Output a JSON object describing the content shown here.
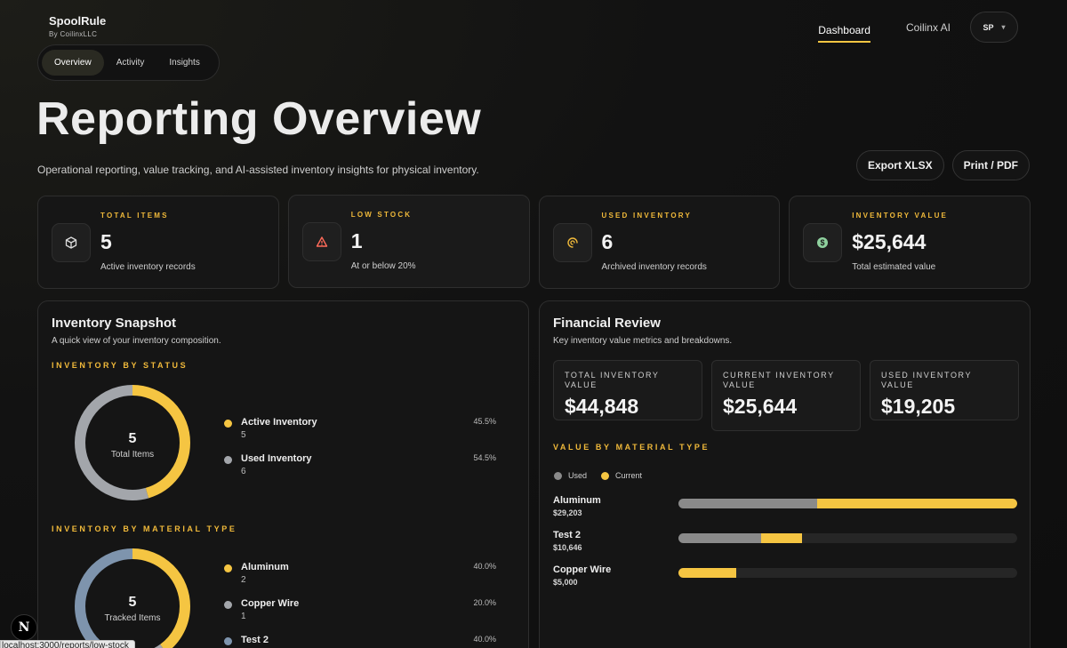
{
  "brand": {
    "name": "SpoolRule",
    "sub": "By CoilinxLLC"
  },
  "nav": {
    "links": [
      "Dashboard",
      "Coilinx AI"
    ],
    "user_initials": "SP",
    "user_menu_icon": "chevron-down-icon"
  },
  "tabs": [
    "Overview",
    "Activity",
    "Insights"
  ],
  "page": {
    "title": "Reporting Overview",
    "subtitle": "Operational reporting, value tracking, and AI-assisted inventory insights for physical inventory."
  },
  "actions": {
    "export": "Export XLSX",
    "print": "Print / PDF"
  },
  "stats": [
    {
      "label": "TOTAL ITEMS",
      "value": "5",
      "sub": "Active inventory records",
      "icon": "box-icon"
    },
    {
      "label": "LOW STOCK",
      "value": "1",
      "sub": "At or below 20%",
      "icon": "warning-icon"
    },
    {
      "label": "USED INVENTORY",
      "value": "6",
      "sub": "Archived inventory records",
      "icon": "spool-icon"
    },
    {
      "label": "INVENTORY VALUE",
      "value": "$25,644",
      "sub": "Total estimated value",
      "icon": "dollar-icon"
    }
  ],
  "snapshot": {
    "title": "Inventory Snapshot",
    "subtitle": "A quick view of your inventory composition.",
    "status_label": "INVENTORY BY STATUS",
    "status_total": "5",
    "status_caption": "Total Items",
    "status_items": [
      {
        "name": "Active Inventory",
        "count": "5",
        "pct": "45.5%",
        "fraction": 0.455,
        "color": "#f5c542"
      },
      {
        "name": "Used Inventory",
        "count": "6",
        "pct": "54.5%",
        "fraction": 0.545,
        "color": "#a3a6ab"
      }
    ],
    "material_label": "INVENTORY BY MATERIAL TYPE",
    "material_total": "5",
    "material_caption": "Tracked Items",
    "material_items": [
      {
        "name": "Aluminum",
        "count": "2",
        "pct": "40.0%",
        "fraction": 0.4,
        "color": "#f5c542"
      },
      {
        "name": "Copper Wire",
        "count": "1",
        "pct": "20.0%",
        "fraction": 0.2,
        "color": "#a3a6ab"
      },
      {
        "name": "Test 2",
        "count": "",
        "pct": "40.0%",
        "fraction": 0.4,
        "color": "#7e94ad"
      }
    ]
  },
  "financial": {
    "title": "Financial Review",
    "subtitle": "Key inventory value metrics and breakdowns.",
    "cards": [
      {
        "label": "TOTAL INVENTORY VALUE",
        "value": "$44,848"
      },
      {
        "label": "CURRENT INVENTORY VALUE",
        "value": "$25,644"
      },
      {
        "label": "USED INVENTORY VALUE",
        "value": "$19,205"
      }
    ],
    "material_label": "VALUE BY MATERIAL TYPE",
    "legend": {
      "used": "Used",
      "current": "Current",
      "used_color": "#8a8a8a",
      "current_color": "#f5c542"
    },
    "bars": [
      {
        "name": "Aluminum",
        "amount": "$29,203",
        "used_fraction": 0.41,
        "current_fraction": 0.59
      },
      {
        "name": "Test 2",
        "amount": "$10,646",
        "used_fraction": 0.245,
        "current_fraction": 0.12
      },
      {
        "name": "Copper Wire",
        "amount": "$5,000",
        "used_fraction": 0.0,
        "current_fraction": 0.17
      }
    ]
  },
  "badge": "N",
  "status_url": "localhost:3000/reports/low-stock"
}
